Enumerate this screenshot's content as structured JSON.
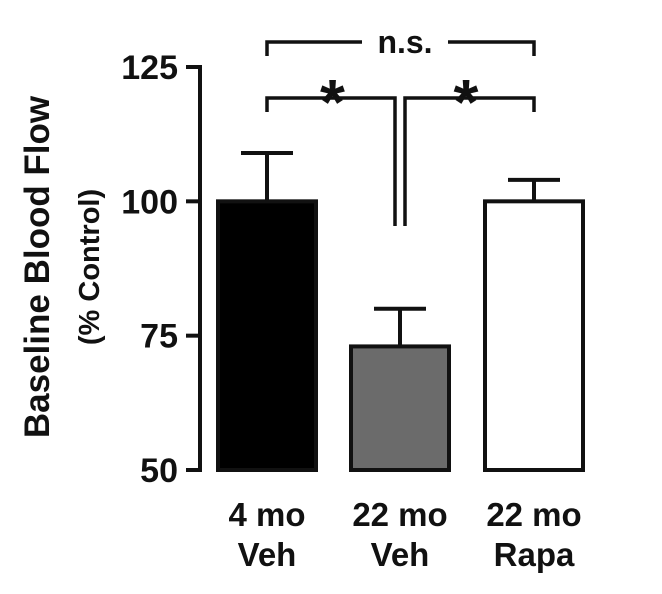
{
  "chart_data": {
    "type": "bar",
    "ylabel": "Baseline Blood Flow",
    "ylabel_sub": "(% Control)",
    "ylim": [
      50,
      125
    ],
    "yticks": [
      "50",
      "75",
      "100",
      "125"
    ],
    "categories": [
      {
        "line1": "4 mo",
        "line2": "Veh"
      },
      {
        "line1": "22 mo",
        "line2": "Veh"
      },
      {
        "line1": "22 mo",
        "line2": "Rapa"
      }
    ],
    "values": [
      100,
      73,
      100
    ],
    "errors": [
      9,
      7,
      4
    ],
    "bar_colors": [
      "#000000",
      "#6b6b6b",
      "#ffffff"
    ],
    "significance": {
      "top_bracket": {
        "from": 0,
        "to": 2,
        "label": "n.s."
      },
      "left_bracket": {
        "from": 0,
        "to": 1,
        "label": "*"
      },
      "right_bracket": {
        "from": 1,
        "to": 2,
        "label": "*"
      }
    },
    "grid": false,
    "legend": "none"
  }
}
